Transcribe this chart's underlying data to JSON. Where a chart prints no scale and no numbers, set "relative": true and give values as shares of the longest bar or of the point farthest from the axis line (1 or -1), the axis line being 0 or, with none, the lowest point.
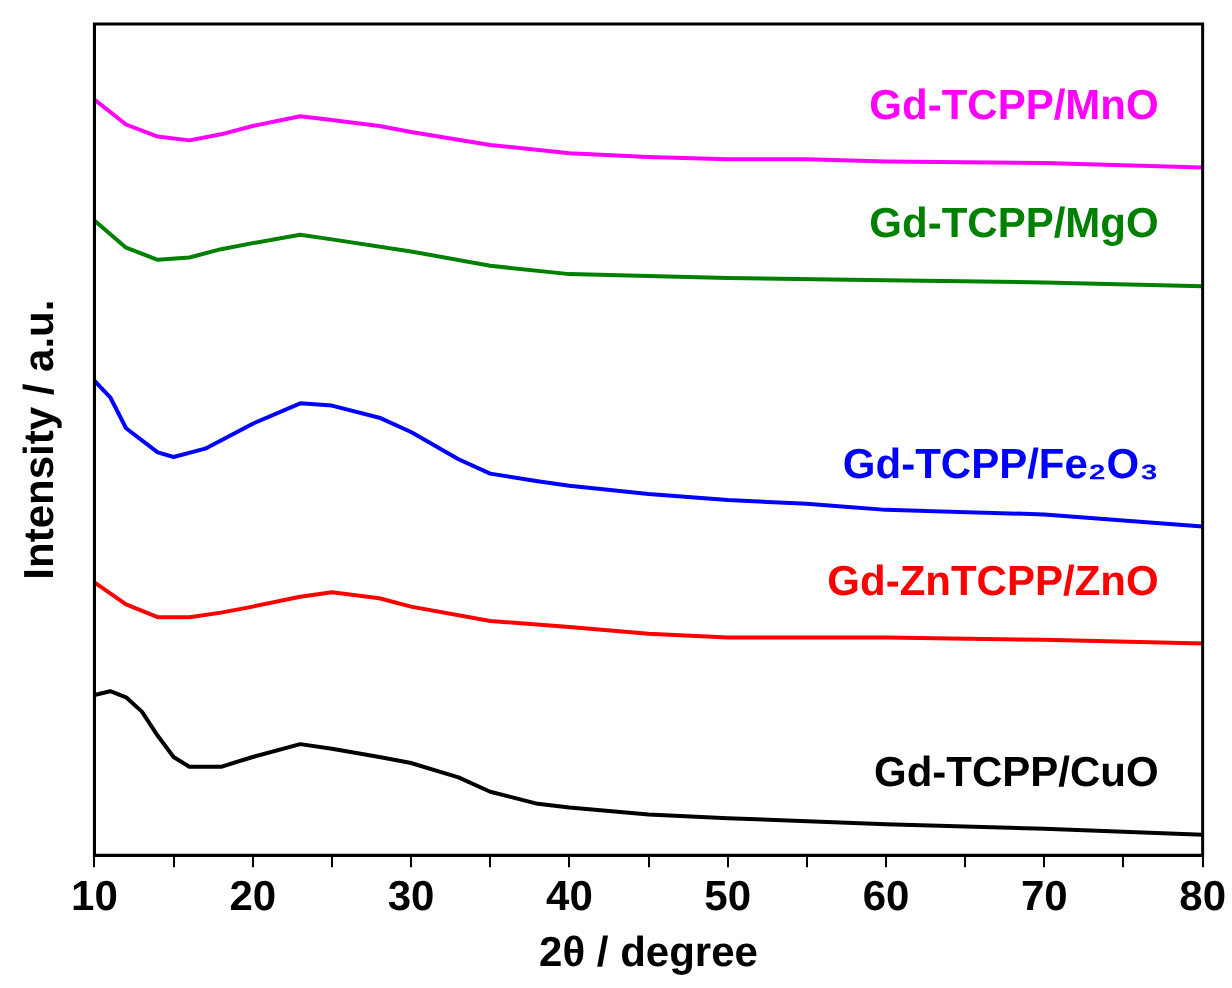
{
  "chart_data": {
    "type": "line",
    "relative": true,
    "xlabel": "2θ / degree",
    "ylabel": "Intensity / a.u.",
    "xlim": [
      10,
      80
    ],
    "xticks": [
      10,
      {
        "value": 15,
        "label": null
      },
      20,
      {
        "value": 25,
        "label": null
      },
      30,
      {
        "value": 35,
        "label": null
      },
      40,
      {
        "value": 45,
        "label": null
      },
      50,
      {
        "value": 55,
        "label": null
      },
      60,
      {
        "value": 65,
        "label": null
      },
      70,
      {
        "value": 75,
        "label": null
      },
      80
    ],
    "legend": false,
    "grid": false,
    "marker": "none",
    "line_style": "solid",
    "series": [
      {
        "name": "Gd-TCPP/MnO",
        "color": "#ff00ff",
        "x": [
          10,
          12,
          14,
          16,
          18,
          20,
          23,
          25,
          28,
          30,
          35,
          40,
          45,
          50,
          55,
          60,
          70,
          80
        ],
        "values": [
          1.0,
          0.967,
          0.951,
          0.946,
          0.954,
          0.965,
          0.978,
          0.973,
          0.965,
          0.957,
          0.94,
          0.929,
          0.924,
          0.921,
          0.921,
          0.918,
          0.916,
          0.91
        ]
      },
      {
        "name": "Gd-TCPP/MgO",
        "color": "#008000",
        "x": [
          10,
          12,
          14,
          16,
          18,
          20,
          23,
          25,
          30,
          35,
          40,
          50,
          60,
          70,
          80
        ],
        "values": [
          0.84,
          0.804,
          0.788,
          0.791,
          0.802,
          0.81,
          0.821,
          0.815,
          0.799,
          0.78,
          0.769,
          0.764,
          0.761,
          0.758,
          0.753
        ]
      },
      {
        "name": "Gd-TCPP/Fe₂O₃",
        "color": "#0000ff",
        "x": [
          10,
          11,
          12,
          14,
          15,
          17,
          20,
          23,
          25,
          28,
          30,
          33,
          35,
          38,
          40,
          45,
          50,
          55,
          60,
          70,
          80
        ],
        "values": [
          0.628,
          0.606,
          0.565,
          0.533,
          0.527,
          0.538,
          0.571,
          0.598,
          0.595,
          0.579,
          0.56,
          0.524,
          0.505,
          0.495,
          0.489,
          0.478,
          0.47,
          0.465,
          0.457,
          0.451,
          0.435
        ]
      },
      {
        "name": "Gd-ZnTCPP/ZnO",
        "color": "#ff0000",
        "x": [
          10,
          12,
          14,
          16,
          18,
          20,
          23,
          25,
          28,
          30,
          35,
          40,
          45,
          50,
          60,
          70,
          80
        ],
        "values": [
          0.361,
          0.332,
          0.315,
          0.315,
          0.321,
          0.329,
          0.342,
          0.348,
          0.34,
          0.329,
          0.31,
          0.302,
          0.293,
          0.288,
          0.288,
          0.285,
          0.28
        ]
      },
      {
        "name": "Gd-TCPP/CuO",
        "color": "#000000",
        "x": [
          10,
          11,
          12,
          13,
          14,
          15,
          16,
          18,
          20,
          23,
          25,
          28,
          30,
          33,
          35,
          38,
          40,
          45,
          50,
          60,
          70,
          80
        ],
        "values": [
          0.212,
          0.217,
          0.209,
          0.19,
          0.158,
          0.13,
          0.117,
          0.117,
          0.13,
          0.147,
          0.141,
          0.13,
          0.122,
          0.103,
          0.084,
          0.068,
          0.063,
          0.054,
          0.049,
          0.041,
          0.035,
          0.027
        ]
      }
    ]
  }
}
